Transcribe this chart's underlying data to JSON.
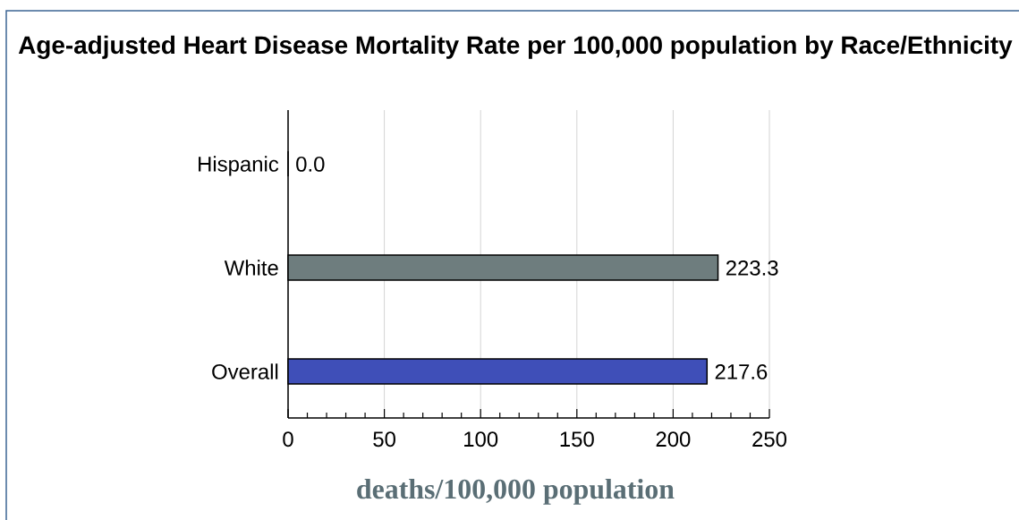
{
  "chart_data": {
    "type": "bar",
    "orientation": "horizontal",
    "title": "Age-adjusted Heart Disease Mortality Rate per 100,000 population by Race/Ethnicity",
    "xlabel": "deaths/100,000 population",
    "categories": [
      "Hispanic",
      "White",
      "Overall"
    ],
    "values": [
      0.0,
      223.3,
      217.6
    ],
    "value_labels": [
      "0.0",
      "223.3",
      "217.6"
    ],
    "colors": [
      null,
      "#6e7d7e",
      "#3f4fb8"
    ],
    "xlim": [
      0,
      250
    ],
    "xticks": [
      0,
      {
        "value": 10,
        "label": null
      },
      {
        "value": 20,
        "label": null
      },
      {
        "value": 30,
        "label": null
      },
      {
        "value": 40,
        "label": null
      },
      50,
      {
        "value": 60,
        "label": null
      },
      {
        "value": 70,
        "label": null
      },
      {
        "value": 80,
        "label": null
      },
      {
        "value": 90,
        "label": null
      },
      100,
      {
        "value": 110,
        "label": null
      },
      {
        "value": 120,
        "label": null
      },
      {
        "value": 130,
        "label": null
      },
      {
        "value": 140,
        "label": null
      },
      150,
      {
        "value": 160,
        "label": null
      },
      {
        "value": 170,
        "label": null
      },
      {
        "value": 180,
        "label": null
      },
      {
        "value": 190,
        "label": null
      },
      200,
      {
        "value": 210,
        "label": null
      },
      {
        "value": 220,
        "label": null
      },
      {
        "value": 230,
        "label": null
      },
      {
        "value": 240,
        "label": null
      },
      250
    ],
    "grid": "x"
  }
}
